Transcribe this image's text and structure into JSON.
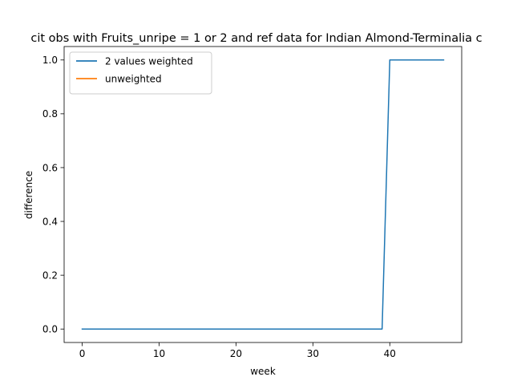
{
  "chart_data": {
    "type": "line",
    "title": "cit obs with Fruits_unripe = 1 or 2 and ref data for Indian Almond-Terminalia c",
    "xlabel": "week",
    "ylabel": "difference",
    "xlim": [
      -2.35,
      49.35
    ],
    "ylim": [
      -0.05,
      1.05
    ],
    "xticks": [
      0,
      10,
      20,
      30,
      40
    ],
    "xtick_labels": [
      "0",
      "10",
      "20",
      "30",
      "40"
    ],
    "yticks": [
      0.0,
      0.2,
      0.4,
      0.6,
      0.8,
      1.0
    ],
    "ytick_labels": [
      "0.0",
      "0.2",
      "0.4",
      "0.6",
      "0.8",
      "1.0"
    ],
    "grid": false,
    "legend_position": "upper-left",
    "series": [
      {
        "name": "2 values weighted",
        "color": "#1f77b4",
        "x": [
          0,
          1,
          2,
          3,
          4,
          5,
          6,
          7,
          8,
          9,
          10,
          11,
          12,
          13,
          14,
          15,
          16,
          17,
          18,
          19,
          20,
          21,
          22,
          23,
          24,
          25,
          26,
          27,
          28,
          29,
          30,
          31,
          32,
          33,
          34,
          35,
          36,
          37,
          38,
          39,
          40,
          41,
          42,
          43,
          44,
          45,
          46,
          47
        ],
        "y": [
          0,
          0,
          0,
          0,
          0,
          0,
          0,
          0,
          0,
          0,
          0,
          0,
          0,
          0,
          0,
          0,
          0,
          0,
          0,
          0,
          0,
          0,
          0,
          0,
          0,
          0,
          0,
          0,
          0,
          0,
          0,
          0,
          0,
          0,
          0,
          0,
          0,
          0,
          0,
          0,
          1,
          1,
          1,
          1,
          1,
          1,
          1,
          1
        ]
      },
      {
        "name": "unweighted",
        "color": "#ff7f0e",
        "x": [],
        "y": []
      }
    ]
  }
}
